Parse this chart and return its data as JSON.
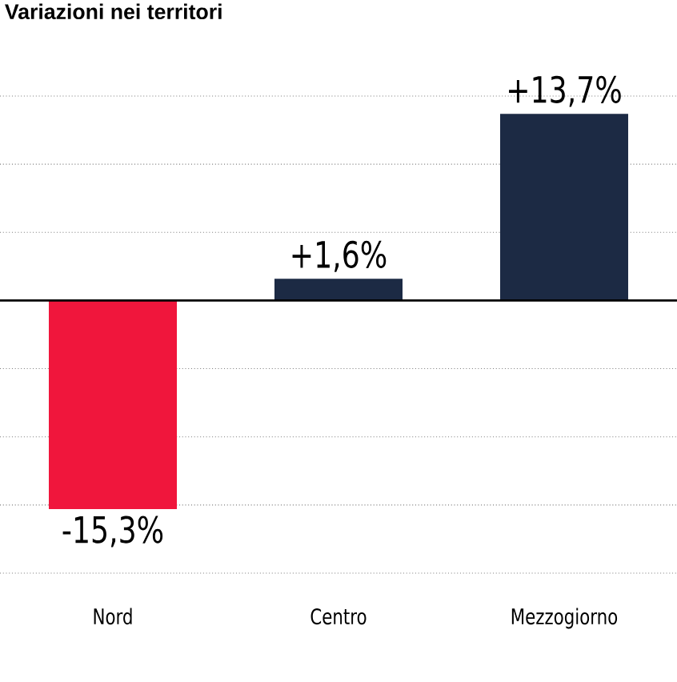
{
  "chart_data": {
    "type": "bar",
    "title": "Variazioni nei territori",
    "categories": [
      "Nord",
      "Centro",
      "Mezzogiorno"
    ],
    "values": [
      -15.3,
      1.6,
      13.7
    ],
    "colors": [
      "#f0163c",
      "#1c2a44",
      "#1c2a44"
    ],
    "value_labels": [
      "-15,3%",
      "+1,6%",
      "+13,7%"
    ],
    "ylim": [
      -20,
      15
    ],
    "yticks": [
      {
        "value": -20,
        "label": null
      },
      {
        "value": -15,
        "label": null
      },
      {
        "value": -10,
        "label": null
      },
      {
        "value": -5,
        "label": null
      },
      {
        "value": 0,
        "label": null
      },
      {
        "value": 5,
        "label": null
      },
      {
        "value": 10,
        "label": null
      },
      {
        "value": 15,
        "label": null
      }
    ],
    "grid": "y",
    "tick_labels": "x"
  }
}
